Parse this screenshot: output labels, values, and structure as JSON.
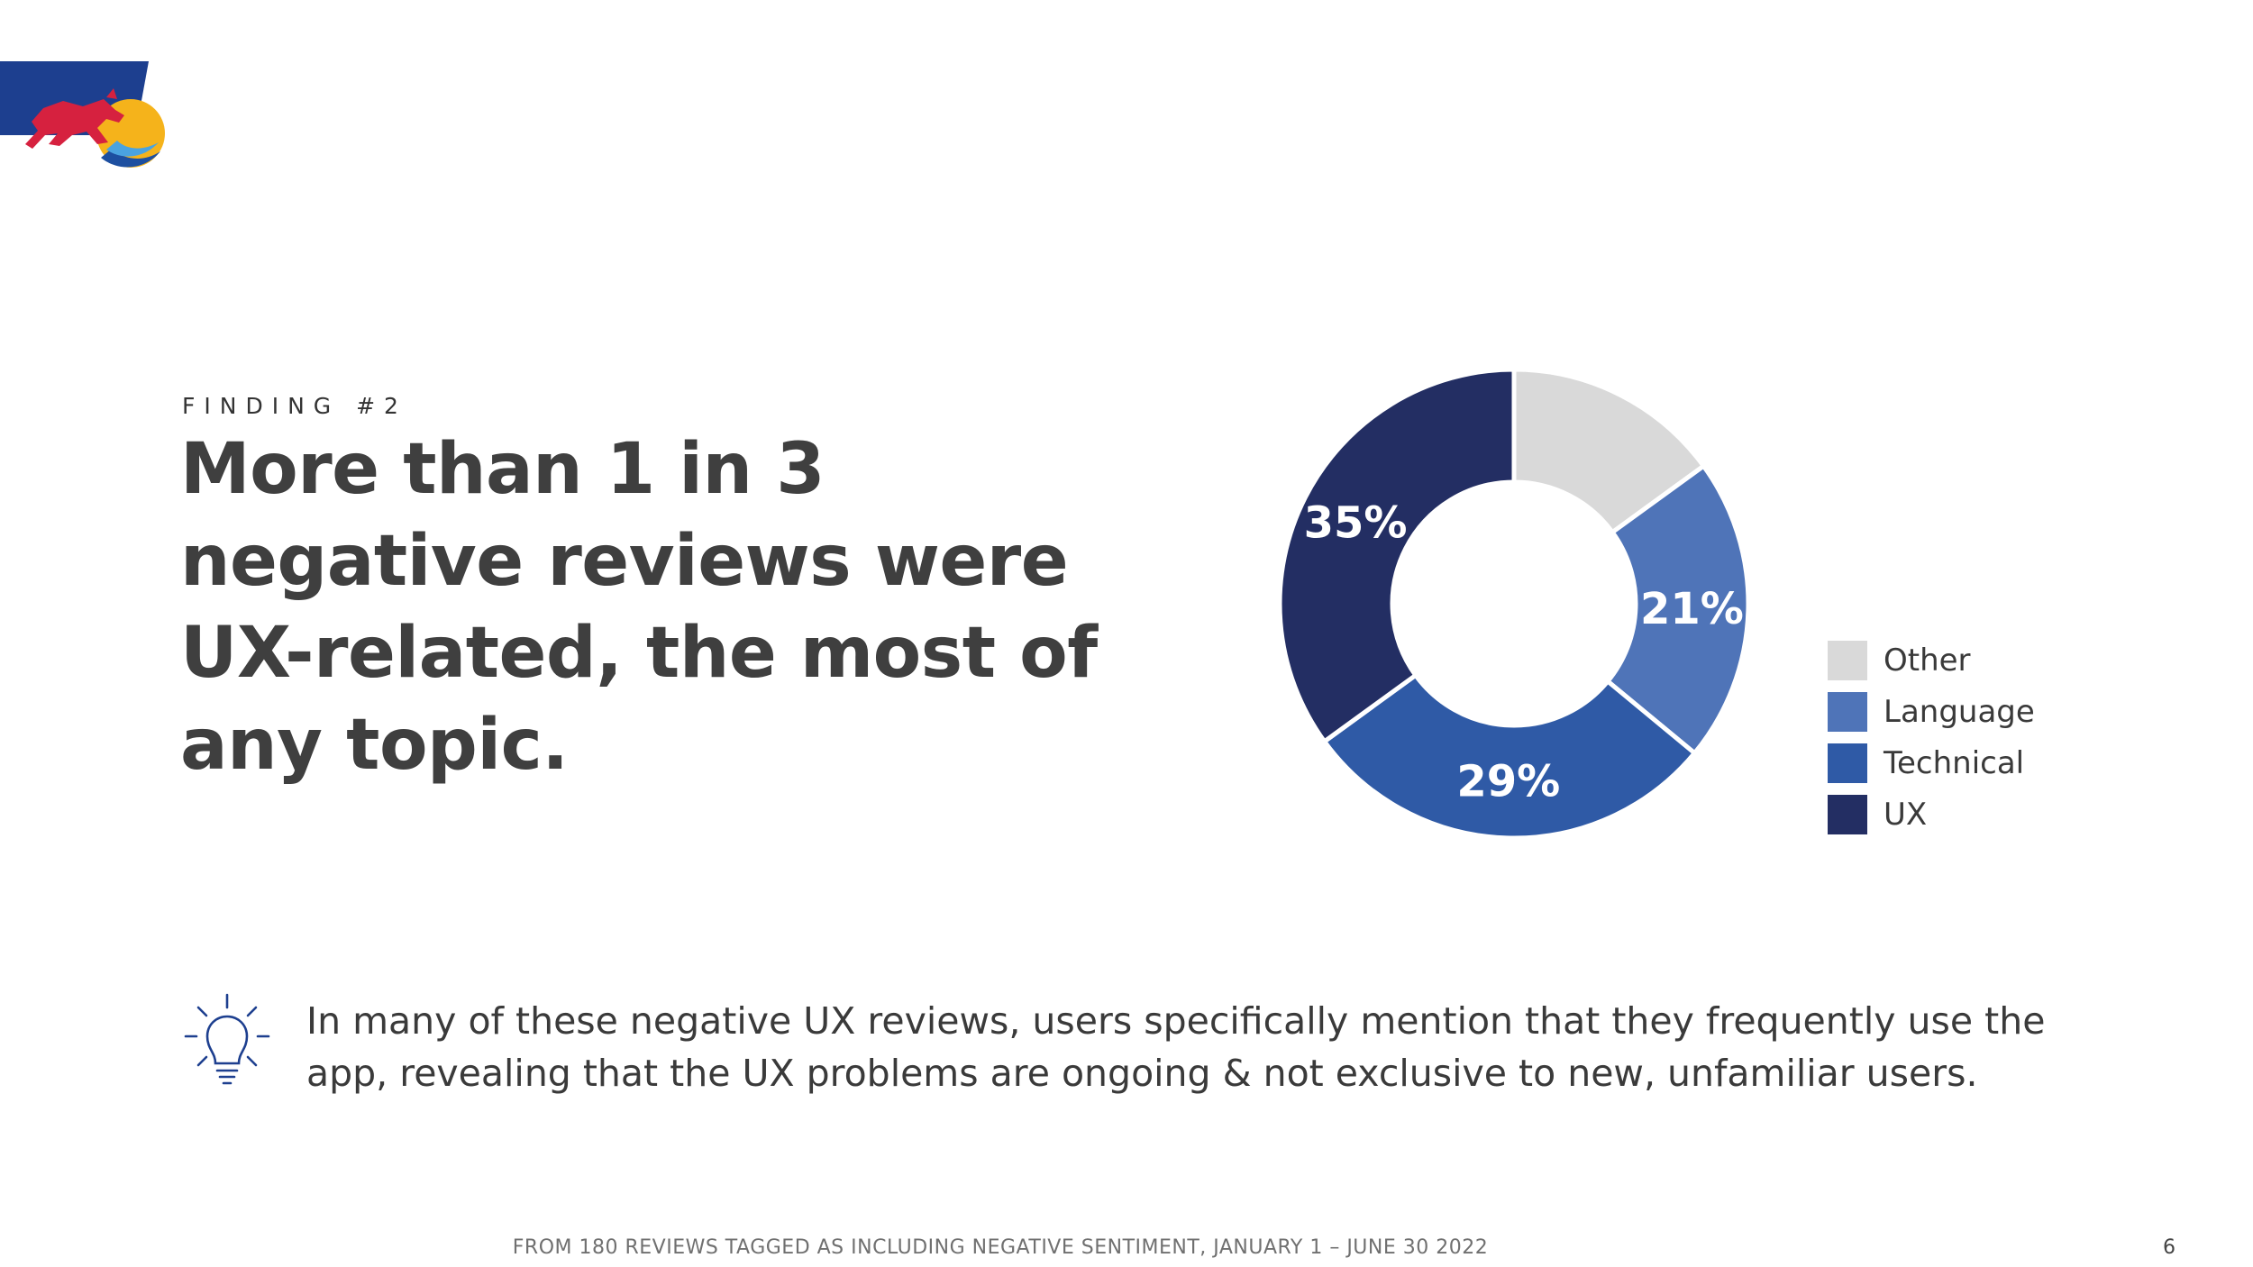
{
  "finding_label": "FINDING #2",
  "headline": "More than 1 in 3 negative reviews were UX-related, the most of any topic.",
  "insight": {
    "icon": "lightbulb-icon",
    "text": "In many of these negative UX reviews, users specifically mention that they frequently use the app, revealing that the UX problems are ongoing & not exclusive to new, unfamiliar users."
  },
  "footer": {
    "source": "FROM 180 REVIEWS TAGGED AS INCLUDING NEGATIVE SENTIMENT, JANUARY 1 – JUNE 30 2022",
    "page_number": "6"
  },
  "colors": {
    "brand_blue": "#1d3f8f",
    "brand_red": "#d6213f",
    "brand_yellow": "#f5b31b"
  },
  "chart_data": {
    "type": "pie",
    "variant": "donut",
    "title": "",
    "legend_position": "right",
    "categories": [
      "Other",
      "Language",
      "Technical",
      "UX"
    ],
    "values": [
      15,
      21,
      29,
      35
    ],
    "labels": [
      "",
      "21%",
      "29%",
      "35%"
    ],
    "colors": [
      "#d9d9d9",
      "#4f74b8",
      "#2f5aa6",
      "#232e63"
    ]
  }
}
